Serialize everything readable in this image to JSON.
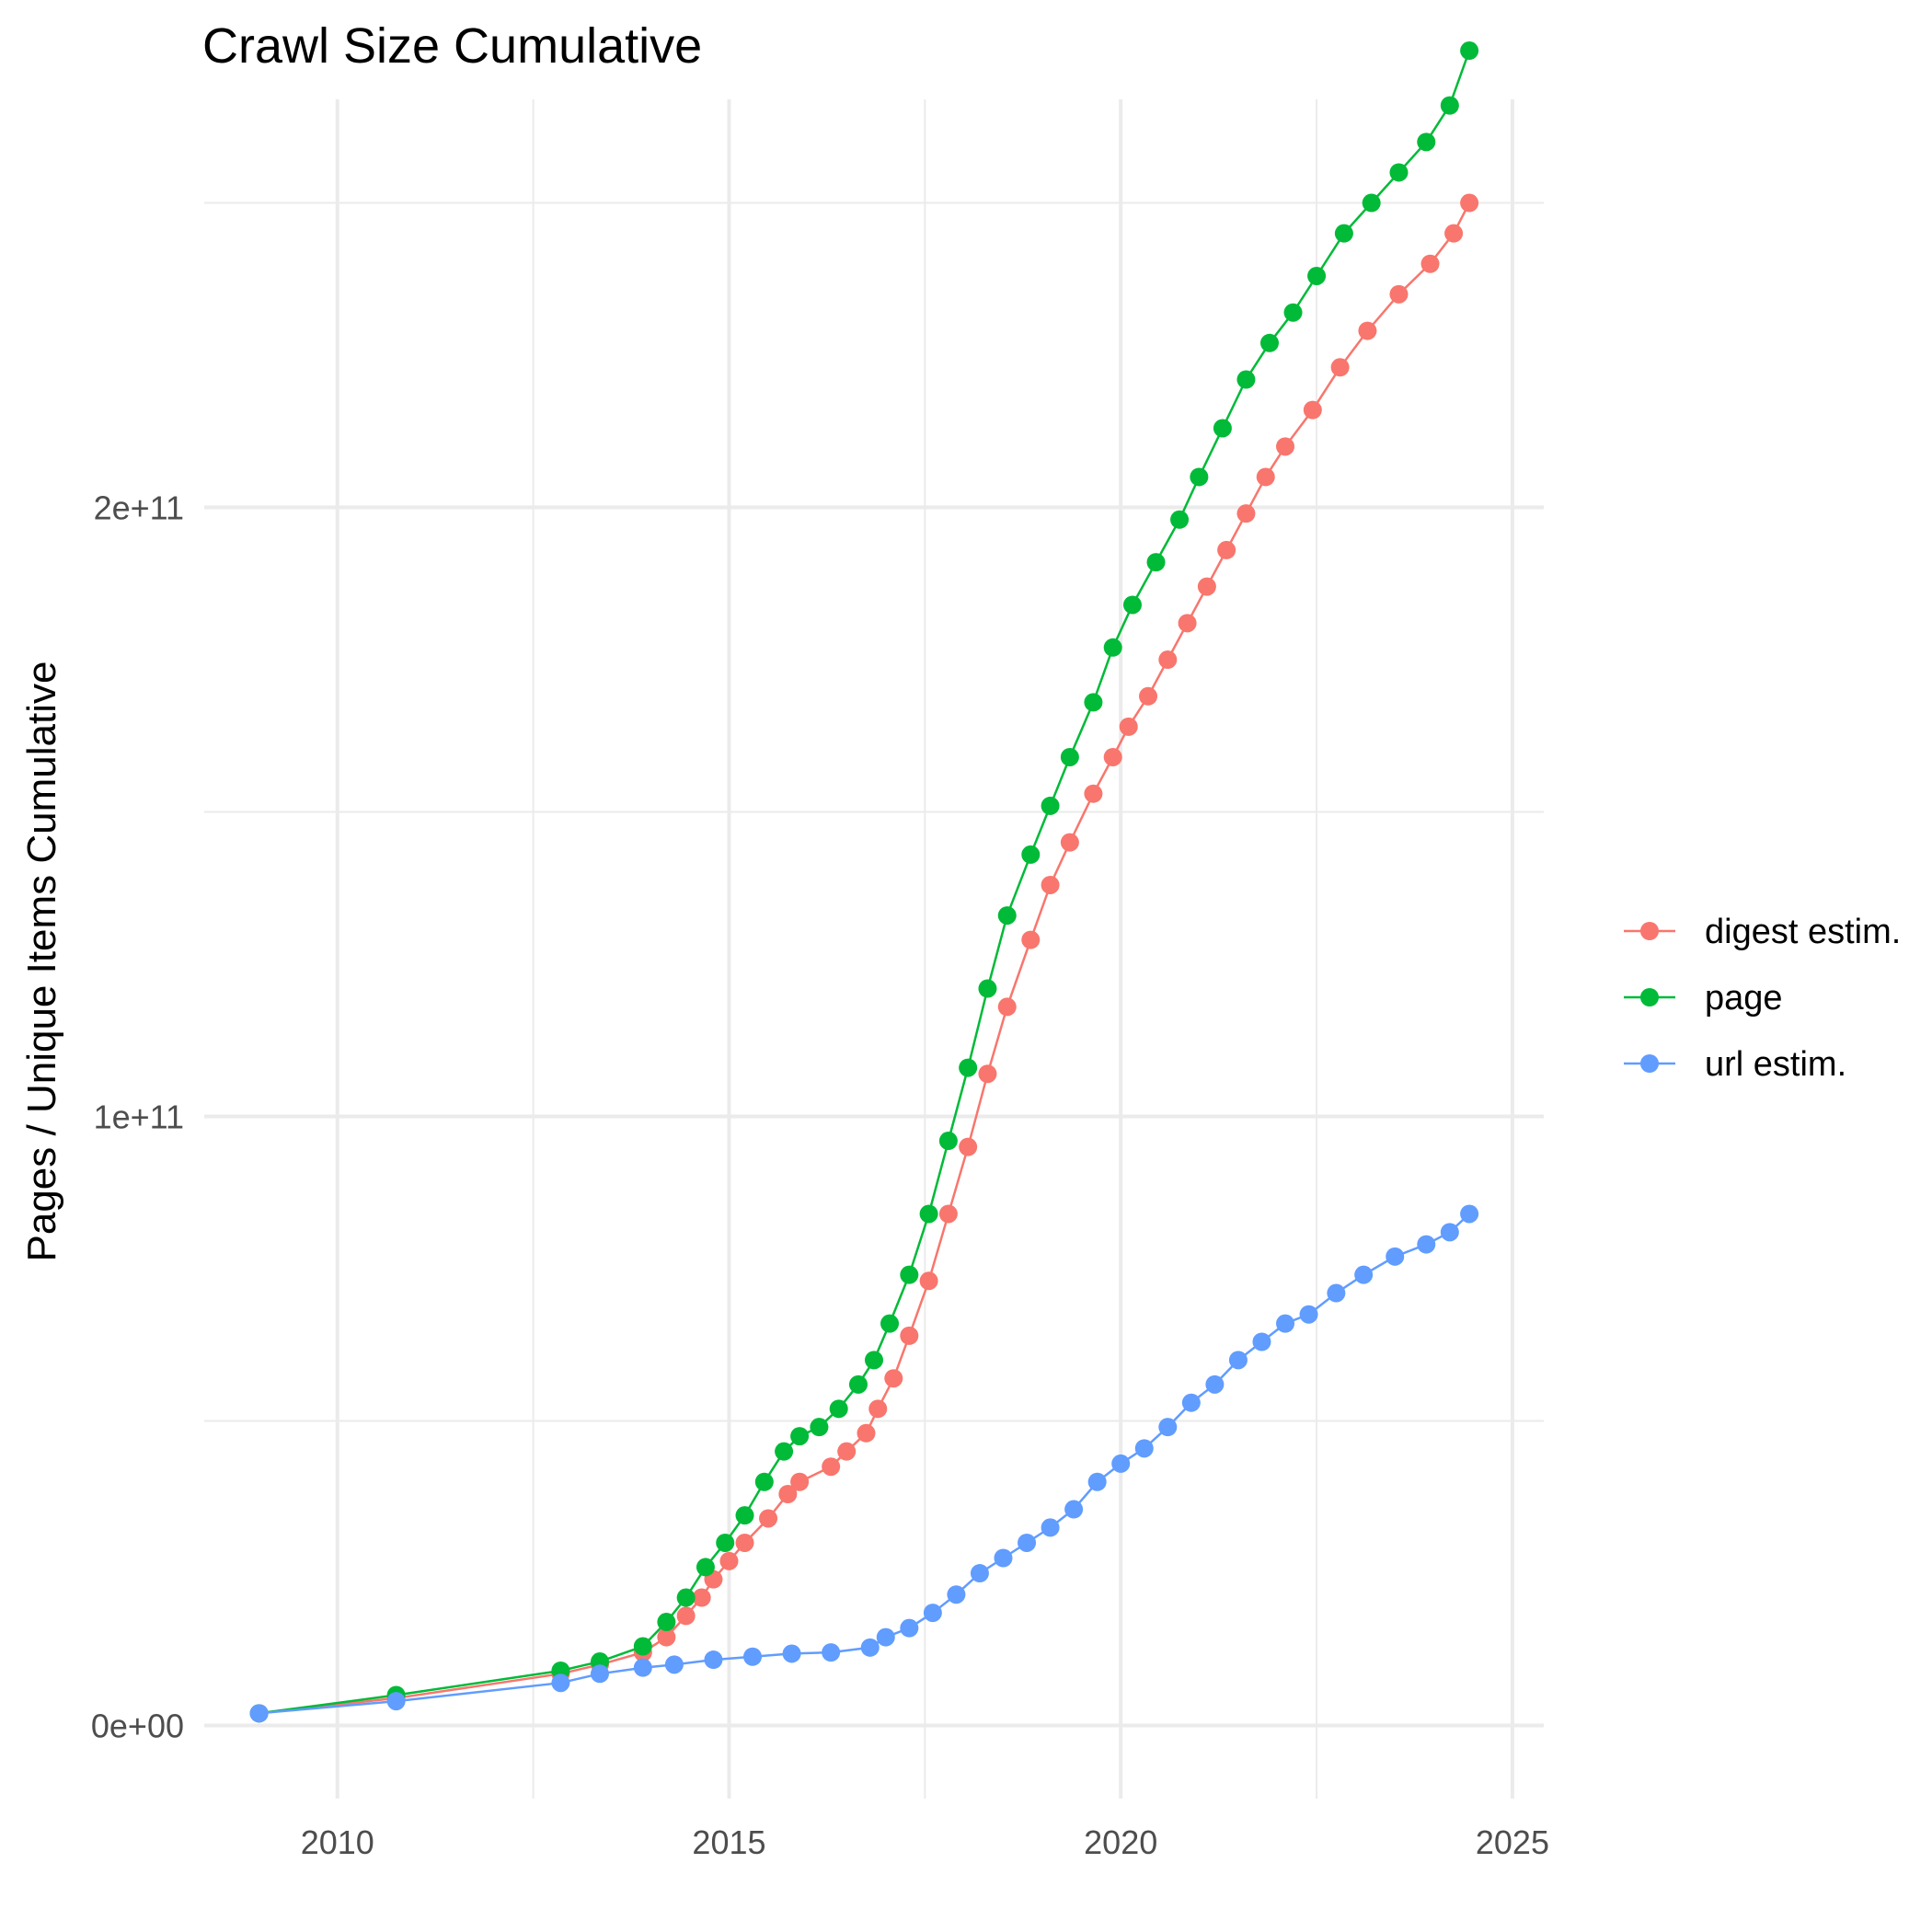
{
  "chart_data": {
    "type": "line",
    "title": "Crawl Size Cumulative",
    "xlabel": "",
    "ylabel": "Pages / Unique Items Cumulative",
    "xlim": [
      2008.3,
      2025.4
    ],
    "ylim": [
      -12000000000.0,
      267000000000.0
    ],
    "x_ticks": [
      2010,
      2015,
      2020,
      2025
    ],
    "x_minor": [
      2012.5,
      2017.5,
      2022.5
    ],
    "y_ticks": [
      0,
      100000000000,
      200000000000
    ],
    "y_tick_labels": [
      "0e+00",
      "1e+11",
      "2e+11"
    ],
    "y_minor": [
      50000000000,
      150000000000,
      250000000000
    ],
    "grid": true,
    "legend_position": "right",
    "series": [
      {
        "name": "digest estim.",
        "color": "#F8766D",
        "points": [
          [
            2009.0,
            2000000000.0
          ],
          [
            2010.75,
            4500000000.0
          ],
          [
            2012.85,
            8500000000.0
          ],
          [
            2013.35,
            10000000000.0
          ],
          [
            2013.9,
            12000000000.0
          ],
          [
            2014.2,
            14500000000.0
          ],
          [
            2014.45,
            18000000000.0
          ],
          [
            2014.65,
            21000000000.0
          ],
          [
            2014.8,
            24000000000.0
          ],
          [
            2015.0,
            27000000000.0
          ],
          [
            2015.2,
            30000000000.0
          ],
          [
            2015.5,
            34000000000.0
          ],
          [
            2015.75,
            38000000000.0
          ],
          [
            2015.9,
            40000000000.0
          ],
          [
            2016.3,
            42500000000.0
          ],
          [
            2016.5,
            45000000000.0
          ],
          [
            2016.75,
            48000000000.0
          ],
          [
            2016.9,
            52000000000.0
          ],
          [
            2017.1,
            57000000000.0
          ],
          [
            2017.3,
            64000000000.0
          ],
          [
            2017.55,
            73000000000.0
          ],
          [
            2017.8,
            84000000000.0
          ],
          [
            2018.05,
            95000000000.0
          ],
          [
            2018.3,
            107000000000.0
          ],
          [
            2018.55,
            118000000000.0
          ],
          [
            2018.85,
            129000000000.0
          ],
          [
            2019.1,
            138000000000.0
          ],
          [
            2019.35,
            145000000000.0
          ],
          [
            2019.65,
            153000000000.0
          ],
          [
            2019.9,
            159000000000.0
          ],
          [
            2020.1,
            164000000000.0
          ],
          [
            2020.35,
            169000000000.0
          ],
          [
            2020.6,
            175000000000.0
          ],
          [
            2020.85,
            181000000000.0
          ],
          [
            2021.1,
            187000000000.0
          ],
          [
            2021.35,
            193000000000.0
          ],
          [
            2021.6,
            199000000000.0
          ],
          [
            2021.85,
            205000000000.0
          ],
          [
            2022.1,
            210000000000.0
          ],
          [
            2022.45,
            216000000000.0
          ],
          [
            2022.8,
            223000000000.0
          ],
          [
            2023.15,
            229000000000.0
          ],
          [
            2023.55,
            235000000000.0
          ],
          [
            2023.95,
            240000000000.0
          ],
          [
            2024.25,
            245000000000.0
          ],
          [
            2024.45,
            250000000000.0
          ]
        ]
      },
      {
        "name": "page",
        "color": "#00BA38",
        "points": [
          [
            2009.0,
            2000000000.0
          ],
          [
            2010.75,
            5000000000.0
          ],
          [
            2012.85,
            9000000000.0
          ],
          [
            2013.35,
            10500000000.0
          ],
          [
            2013.9,
            13000000000.0
          ],
          [
            2014.2,
            17000000000.0
          ],
          [
            2014.45,
            21000000000.0
          ],
          [
            2014.7,
            26000000000.0
          ],
          [
            2014.95,
            30000000000.0
          ],
          [
            2015.2,
            34500000000.0
          ],
          [
            2015.45,
            40000000000.0
          ],
          [
            2015.7,
            45000000000.0
          ],
          [
            2015.9,
            47500000000.0
          ],
          [
            2016.15,
            49000000000.0
          ],
          [
            2016.4,
            52000000000.0
          ],
          [
            2016.65,
            56000000000.0
          ],
          [
            2016.85,
            60000000000.0
          ],
          [
            2017.05,
            66000000000.0
          ],
          [
            2017.3,
            74000000000.0
          ],
          [
            2017.55,
            84000000000.0
          ],
          [
            2017.8,
            96000000000.0
          ],
          [
            2018.05,
            108000000000.0
          ],
          [
            2018.3,
            121000000000.0
          ],
          [
            2018.55,
            133000000000.0
          ],
          [
            2018.85,
            143000000000.0
          ],
          [
            2019.1,
            151000000000.0
          ],
          [
            2019.35,
            159000000000.0
          ],
          [
            2019.65,
            168000000000.0
          ],
          [
            2019.9,
            177000000000.0
          ],
          [
            2020.15,
            184000000000.0
          ],
          [
            2020.45,
            191000000000.0
          ],
          [
            2020.75,
            198000000000.0
          ],
          [
            2021.0,
            205000000000.0
          ],
          [
            2021.3,
            213000000000.0
          ],
          [
            2021.6,
            221000000000.0
          ],
          [
            2021.9,
            227000000000.0
          ],
          [
            2022.2,
            232000000000.0
          ],
          [
            2022.5,
            238000000000.0
          ],
          [
            2022.85,
            245000000000.0
          ],
          [
            2023.2,
            250000000000.0
          ],
          [
            2023.55,
            255000000000.0
          ],
          [
            2023.9,
            260000000000.0
          ],
          [
            2024.2,
            266000000000.0
          ],
          [
            2024.45,
            275000000000.0
          ]
        ]
      },
      {
        "name": "url estim.",
        "color": "#619CFF",
        "points": [
          [
            2009.0,
            2000000000.0
          ],
          [
            2010.75,
            4000000000.0
          ],
          [
            2012.85,
            7000000000.0
          ],
          [
            2013.35,
            8500000000.0
          ],
          [
            2013.9,
            9500000000.0
          ],
          [
            2014.3,
            10000000000.0
          ],
          [
            2014.8,
            10800000000.0
          ],
          [
            2015.3,
            11300000000.0
          ],
          [
            2015.8,
            11800000000.0
          ],
          [
            2016.3,
            12000000000.0
          ],
          [
            2016.8,
            12800000000.0
          ],
          [
            2017.0,
            14500000000.0
          ],
          [
            2017.3,
            16000000000.0
          ],
          [
            2017.6,
            18500000000.0
          ],
          [
            2017.9,
            21500000000.0
          ],
          [
            2018.2,
            25000000000.0
          ],
          [
            2018.5,
            27500000000.0
          ],
          [
            2018.8,
            30000000000.0
          ],
          [
            2019.1,
            32500000000.0
          ],
          [
            2019.4,
            35500000000.0
          ],
          [
            2019.7,
            40000000000.0
          ],
          [
            2020.0,
            43000000000.0
          ],
          [
            2020.3,
            45500000000.0
          ],
          [
            2020.6,
            49000000000.0
          ],
          [
            2020.9,
            53000000000.0
          ],
          [
            2021.2,
            56000000000.0
          ],
          [
            2021.5,
            60000000000.0
          ],
          [
            2021.8,
            63000000000.0
          ],
          [
            2022.1,
            66000000000.0
          ],
          [
            2022.4,
            67500000000.0
          ],
          [
            2022.75,
            71000000000.0
          ],
          [
            2023.1,
            74000000000.0
          ],
          [
            2023.5,
            77000000000.0
          ],
          [
            2023.9,
            79000000000.0
          ],
          [
            2024.2,
            81000000000.0
          ],
          [
            2024.45,
            84000000000.0
          ]
        ]
      }
    ]
  }
}
